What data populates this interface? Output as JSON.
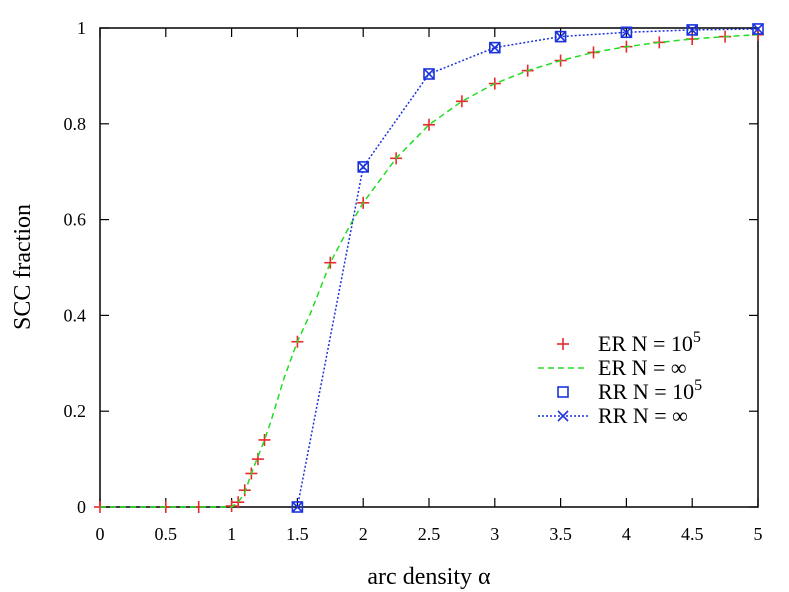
{
  "chart_data": {
    "type": "line",
    "xlabel": "arc density α",
    "ylabel": "SCC fraction",
    "xlim": [
      0,
      5
    ],
    "ylim": [
      0,
      1
    ],
    "xticks": [
      "0",
      "0.5",
      "1",
      "1.5",
      "2",
      "2.5",
      "3",
      "3.5",
      "4",
      "4.5",
      "5"
    ],
    "yticks": [
      "0",
      "0.2",
      "0.4",
      "0.6",
      "0.8",
      "1"
    ],
    "grid": false,
    "legend_position": "right-middle",
    "series": [
      {
        "name": "ER N = 10",
        "name_sup": "5",
        "style": "markers",
        "marker": "plus",
        "color": "#e8292b",
        "x": [
          0.0,
          0.5,
          0.75,
          1.0,
          1.05,
          1.1,
          1.15,
          1.2,
          1.25,
          1.5,
          1.75,
          2.0,
          2.25,
          2.5,
          2.75,
          3.0,
          3.25,
          3.5,
          3.75,
          4.0,
          4.25,
          4.5,
          4.75,
          5.0
        ],
        "y": [
          0.0,
          0.0,
          0.0,
          0.002,
          0.01,
          0.035,
          0.07,
          0.1,
          0.14,
          0.345,
          0.51,
          0.635,
          0.728,
          0.798,
          0.847,
          0.884,
          0.911,
          0.932,
          0.949,
          0.961,
          0.97,
          0.977,
          0.982,
          0.986
        ]
      },
      {
        "name": "ER N = ∞",
        "style": "dashed",
        "color": "#22dd22",
        "x": [
          0.0,
          1.0,
          1.05,
          1.1,
          1.15,
          1.2,
          1.25,
          1.3,
          1.4,
          1.5,
          1.6,
          1.75,
          1.9,
          2.0,
          2.25,
          2.5,
          2.75,
          3.0,
          3.25,
          3.5,
          3.75,
          4.0,
          4.25,
          4.5,
          4.75,
          5.0
        ],
        "y": [
          0.0,
          0.0,
          0.01,
          0.03,
          0.07,
          0.105,
          0.14,
          0.18,
          0.27,
          0.345,
          0.405,
          0.51,
          0.588,
          0.635,
          0.728,
          0.798,
          0.847,
          0.884,
          0.911,
          0.932,
          0.949,
          0.961,
          0.97,
          0.977,
          0.982,
          0.986
        ]
      },
      {
        "name": "RR N = 10",
        "name_sup": "5",
        "style": "markers",
        "marker": "square",
        "color": "#1a33dd",
        "x": [
          1.5,
          2.0,
          2.5,
          3.0,
          3.5,
          4.0,
          4.5,
          5.0
        ],
        "y": [
          0.0,
          0.71,
          0.904,
          0.959,
          0.982,
          0.991,
          0.996,
          0.998
        ]
      },
      {
        "name": "RR N = ∞",
        "style": "dotted-line-markers",
        "marker": "x",
        "color": "#1a33dd",
        "x": [
          1.5,
          2.0,
          2.5,
          3.0,
          3.5,
          4.0,
          4.5,
          5.0
        ],
        "y": [
          0.0,
          0.71,
          0.904,
          0.959,
          0.982,
          0.991,
          0.996,
          0.998
        ]
      }
    ]
  }
}
